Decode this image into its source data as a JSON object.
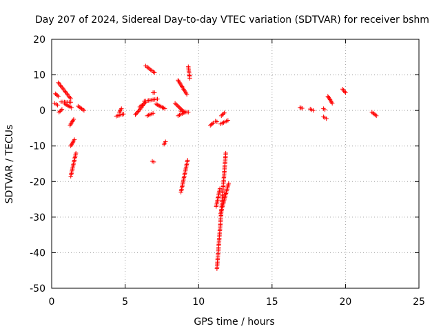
{
  "chart_data": {
    "type": "scatter",
    "title": "Day 207 of 2024, Sidereal Day-to-day VTEC variation (SDTVAR) for receiver bshm",
    "xlabel": "GPS time / hours",
    "ylabel": "SDTVAR / TECUs",
    "xlim": [
      0,
      25
    ],
    "ylim": [
      -50,
      20
    ],
    "xticks": [
      "0",
      "5",
      "10",
      "15",
      "20",
      "25"
    ],
    "yticks": [
      "-50",
      "-40",
      "-30",
      "-20",
      "-10",
      "0",
      "10",
      "20"
    ],
    "grid": true,
    "marker": "plus",
    "color": "#ff0000",
    "segments": [
      {
        "x": [
          0.25,
          0.45
        ],
        "y": [
          4.7,
          4.0
        ]
      },
      {
        "x": [
          0.2,
          0.4
        ],
        "y": [
          2.0,
          1.5
        ]
      },
      {
        "x": [
          0.45,
          1.3
        ],
        "y": [
          7.8,
          3.3
        ]
      },
      {
        "x": [
          0.5,
          0.7
        ],
        "y": [
          -0.5,
          0.3
        ]
      },
      {
        "x": [
          0.65,
          1.3
        ],
        "y": [
          2.4,
          2.3
        ]
      },
      {
        "x": [
          0.9,
          1.35
        ],
        "y": [
          1.8,
          0.8
        ]
      },
      {
        "x": [
          1.25,
          1.5
        ],
        "y": [
          -4.2,
          -2.5
        ]
      },
      {
        "x": [
          1.3,
          1.55
        ],
        "y": [
          -10.0,
          -8.2
        ]
      },
      {
        "x": [
          1.3,
          1.65
        ],
        "y": [
          -18.5,
          -12.0
        ]
      },
      {
        "x": [
          1.8,
          2.2
        ],
        "y": [
          1.2,
          0.0
        ]
      },
      {
        "x": [
          4.4,
          4.9
        ],
        "y": [
          -1.6,
          -1.0
        ]
      },
      {
        "x": [
          4.6,
          4.75
        ],
        "y": [
          -0.5,
          0.5
        ]
      },
      {
        "x": [
          5.7,
          6.2
        ],
        "y": [
          -1.2,
          1.3
        ]
      },
      {
        "x": [
          6.0,
          6.4
        ],
        "y": [
          1.0,
          2.3
        ]
      },
      {
        "x": [
          6.3,
          7.2
        ],
        "y": [
          2.6,
          3.2
        ]
      },
      {
        "x": [
          6.4,
          7.0
        ],
        "y": [
          12.5,
          10.6
        ]
      },
      {
        "x": [
          6.9,
          7.0
        ],
        "y": [
          5.0,
          5.0
        ]
      },
      {
        "x": [
          7.1,
          7.7
        ],
        "y": [
          1.8,
          0.5
        ]
      },
      {
        "x": [
          6.5,
          6.9
        ],
        "y": [
          -1.5,
          -0.8
        ]
      },
      {
        "x": [
          6.85,
          6.95
        ],
        "y": [
          -14.3,
          -14.5
        ]
      },
      {
        "x": [
          7.65,
          7.75
        ],
        "y": [
          -9.5,
          -8.8
        ]
      },
      {
        "x": [
          8.4,
          8.9
        ],
        "y": [
          2.0,
          0.0
        ]
      },
      {
        "x": [
          8.6,
          9.2
        ],
        "y": [
          8.5,
          4.5
        ]
      },
      {
        "x": [
          8.6,
          9.1
        ],
        "y": [
          -1.5,
          -0.5
        ]
      },
      {
        "x": [
          8.8,
          9.3
        ],
        "y": [
          -0.2,
          -0.5
        ]
      },
      {
        "x": [
          8.8,
          9.25
        ],
        "y": [
          -23.0,
          -14.0
        ]
      },
      {
        "x": [
          9.3,
          9.4
        ],
        "y": [
          12.3,
          9.0
        ]
      },
      {
        "x": [
          10.8,
          11.0
        ],
        "y": [
          -4.2,
          -3.5
        ]
      },
      {
        "x": [
          11.15,
          11.25
        ],
        "y": [
          -3.0,
          -3.2
        ]
      },
      {
        "x": [
          11.2,
          11.45
        ],
        "y": [
          -27.0,
          -22.0
        ]
      },
      {
        "x": [
          11.25,
          11.85
        ],
        "y": [
          -44.5,
          -12.0
        ]
      },
      {
        "x": [
          11.5,
          12.05
        ],
        "y": [
          -29.0,
          -20.5
        ]
      },
      {
        "x": [
          11.5,
          12.0
        ],
        "y": [
          -3.8,
          -2.8
        ]
      },
      {
        "x": [
          11.55,
          11.75
        ],
        "y": [
          -1.5,
          -0.7
        ]
      },
      {
        "x": [
          16.9,
          17.05
        ],
        "y": [
          0.8,
          0.6
        ]
      },
      {
        "x": [
          17.6,
          17.8
        ],
        "y": [
          0.4,
          0.0
        ]
      },
      {
        "x": [
          18.5,
          18.6
        ],
        "y": [
          0.5,
          0.2
        ]
      },
      {
        "x": [
          18.5,
          18.7
        ],
        "y": [
          -1.8,
          -2.3
        ]
      },
      {
        "x": [
          18.8,
          19.1
        ],
        "y": [
          4.0,
          2.0
        ]
      },
      {
        "x": [
          19.8,
          20.0
        ],
        "y": [
          6.0,
          5.0
        ]
      },
      {
        "x": [
          21.8,
          22.1
        ],
        "y": [
          -0.5,
          -1.5
        ]
      }
    ]
  }
}
